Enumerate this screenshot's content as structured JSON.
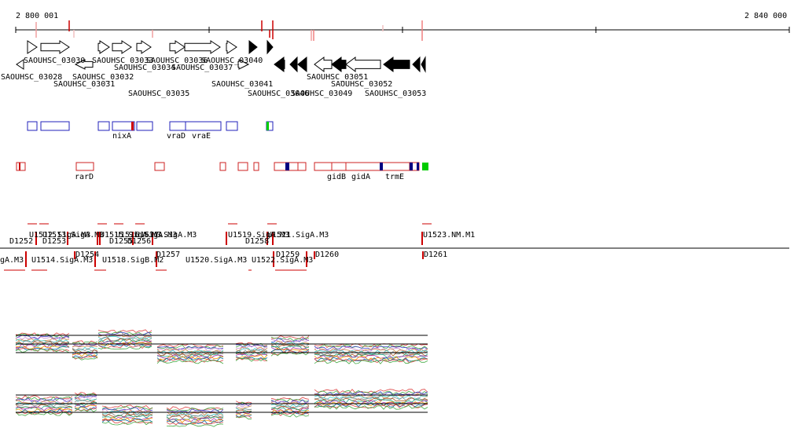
{
  "ruler": {
    "start_label": "2 800 001",
    "end_label": "2 840 000"
  },
  "genes": [
    {
      "name": "SAOUHSC_03028",
      "strand": "-",
      "fill": "white"
    },
    {
      "name": "SAOUHSC_03030",
      "strand": "+",
      "fill": "white"
    },
    {
      "name": "",
      "strand": "+",
      "fill": "white"
    },
    {
      "name": "SAOUHSC_03031",
      "strand": "-",
      "fill": "white"
    },
    {
      "name": "SAOUHSC_03032",
      "strand": "+",
      "fill": "white"
    },
    {
      "name": "SAOUHSC_03033",
      "strand": "+",
      "fill": "white"
    },
    {
      "name": "SAOUHSC_03034",
      "strand": "+",
      "fill": "white"
    },
    {
      "name": "SAOUHSC_03035",
      "strand": "+",
      "fill": "white"
    },
    {
      "name": "SAOUHSC_03036",
      "strand": "+",
      "fill": "white"
    },
    {
      "name": "SAOUHSC_03037",
      "strand": "+",
      "fill": "white"
    },
    {
      "name": "SAOUHSC_03040",
      "strand": "+",
      "fill": "black"
    },
    {
      "name": "SAOUHSC_03041",
      "strand": "+",
      "fill": "black"
    },
    {
      "name": "",
      "strand": "+",
      "fill": "white"
    },
    {
      "name": "",
      "strand": "-",
      "fill": "black"
    },
    {
      "name": "SAOUHSC_03046",
      "strand": "-",
      "fill": "black"
    },
    {
      "name": "SAOUHSC_03049",
      "strand": "-",
      "fill": "black"
    },
    {
      "name": "SAOUHSC_03051",
      "strand": "-",
      "fill": "white"
    },
    {
      "name": "",
      "strand": "-",
      "fill": "black"
    },
    {
      "name": "SAOUHSC_03052",
      "strand": "-",
      "fill": "white"
    },
    {
      "name": "SAOUHSC_03053",
      "strand": "-",
      "fill": "black"
    },
    {
      "name": "",
      "strand": "-",
      "fill": "black"
    },
    {
      "name": "",
      "strand": "-",
      "fill": "black"
    }
  ],
  "operon_labels_plus": [
    "nixA",
    "vraD",
    "vraE"
  ],
  "operon_labels_minus": [
    "rarD",
    "gidB",
    "gidA",
    "trmE"
  ],
  "features_top": [
    "U1512.SigA.M3",
    "U1513.SigA.M3",
    "U1515.SigA.M3",
    "U1516.SigA.M3",
    "U1517.SigA.M3",
    "U1519.SigA.M3",
    "U1521.SigA.M3",
    "U1523.NM.M1"
  ],
  "d_labels_top": [
    "D1252",
    "D1253",
    "D1255",
    "D1256",
    "D1258"
  ],
  "d_labels_bottom": [
    "D1254",
    "D1257",
    "D1259",
    "D1260",
    "D1261"
  ],
  "features_bottom": [
    "gA.M3",
    "U1514.SigA.M3",
    "U1518.SigB.M2",
    "U1520.SigA.M3",
    "U1522.SigA.M3"
  ],
  "colors": {
    "plus_box": "#2222bb",
    "minus_box": "#cc2222",
    "mark": "#cc0000",
    "dark_mark": "#000080",
    "green_mark": "#00cc00"
  }
}
